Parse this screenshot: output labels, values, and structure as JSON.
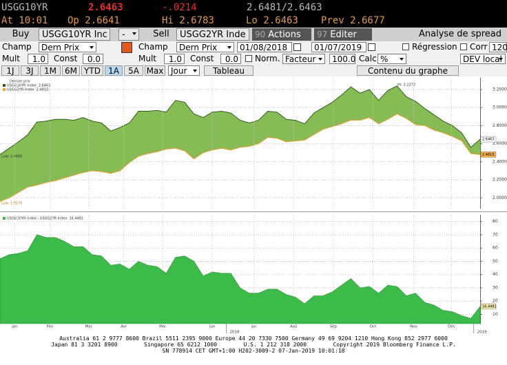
{
  "header": {
    "ticker": "USGG10YR",
    "last": "2.6463",
    "change": "-.0214",
    "bid_ask": "2.6481/2.6463",
    "time": "At 10:01",
    "open": "Op 2.6641",
    "high": "Hi 2.6783",
    "low": "Lo 2.6463",
    "prev": "Prev 2.6677"
  },
  "toolbar": {
    "buy": "Buy",
    "security1": "USGG10YR Inc",
    "operator": "-",
    "sell": "Sell",
    "security2": "USGG2YR Inde",
    "actions_num": "90",
    "actions": "Actions",
    "edit_num": "97",
    "edit": "Editer",
    "title": "Analyse de spread"
  },
  "controls": {
    "field1_label": "Champ",
    "field1": "Dern Prix",
    "field2_label": "Champ",
    "field2": "Dern Prix",
    "start_date": "01/08/2018",
    "end_date": "01/07/2019",
    "regression": "Régression",
    "corr": "Corr",
    "corr_value": "120",
    "mult1_label": "Mult",
    "mult1": "1.0",
    "const1_label": "Const",
    "const1": "0.0",
    "mult2_label": "Mult",
    "mult2": "1.0",
    "const2_label": "Const",
    "const2": "0.0",
    "norm": "Norm.",
    "factor": "Facteur",
    "factor_value": "100.0",
    "calc": "Calc",
    "calc_value": "%",
    "currency": "DEV local",
    "periods": [
      "1J",
      "3J",
      "1M",
      "6M",
      "YTD",
      "1A",
      "5A",
      "Max"
    ],
    "frequency": "Jour",
    "table": "Tableau",
    "contents": "Contenu du graphe"
  },
  "chart_data": [
    {
      "type": "line",
      "legend_title": "Dernier prix",
      "fill_color": "#79b443",
      "grid": true,
      "x": [
        0,
        1,
        2,
        3,
        4,
        5,
        6,
        7,
        8,
        9,
        10,
        11,
        12,
        13,
        14,
        15,
        16,
        17,
        18,
        19,
        20,
        21,
        22,
        23,
        24,
        25,
        26,
        27,
        28,
        29,
        30,
        31,
        32,
        33,
        34,
        35,
        36,
        37,
        38,
        39,
        40,
        41,
        42,
        43,
        44,
        45,
        46,
        47,
        48,
        49,
        50,
        51,
        52
      ],
      "xlim": [
        0,
        52
      ],
      "ylim": [
        1.88,
        3.33
      ],
      "yticks": [
        {
          "value": 3.2,
          "label": "3.2000"
        },
        {
          "value": 3.0,
          "label": "3.0000"
        },
        {
          "value": 2.8,
          "label": "2.8000"
        },
        {
          "value": 2.6,
          "label": "2.6000"
        },
        {
          "value": 2.4,
          "label": "2.4000"
        },
        {
          "value": 2.2,
          "label": "2.2000"
        },
        {
          "value": 2.0,
          "label": "2.0000"
        }
      ],
      "series": [
        {
          "name": "USGG10YR Index",
          "last_label": "2.6463",
          "color": "#2f5f18",
          "values": [
            2.48,
            2.55,
            2.62,
            2.7,
            2.84,
            2.85,
            2.87,
            2.87,
            2.86,
            2.89,
            2.85,
            2.83,
            2.74,
            2.78,
            2.83,
            2.96,
            2.96,
            2.97,
            2.95,
            3.08,
            3.06,
            2.93,
            2.89,
            2.95,
            2.96,
            2.94,
            2.86,
            2.83,
            2.86,
            2.96,
            2.95,
            2.87,
            2.86,
            2.82,
            2.94,
            3.0,
            3.06,
            3.14,
            3.23,
            3.16,
            3.2,
            3.08,
            3.19,
            3.24,
            3.12,
            3.07,
            2.99,
            2.92,
            2.85,
            2.8,
            2.72,
            2.56,
            2.65
          ]
        },
        {
          "name": "USGG2YR Index",
          "last_label": "2.4815",
          "color": "#f0a030",
          "values": [
            1.96,
            2.0,
            2.06,
            2.12,
            2.14,
            2.17,
            2.19,
            2.22,
            2.25,
            2.28,
            2.3,
            2.29,
            2.27,
            2.3,
            2.39,
            2.46,
            2.49,
            2.51,
            2.54,
            2.55,
            2.52,
            2.43,
            2.5,
            2.53,
            2.55,
            2.53,
            2.56,
            2.57,
            2.6,
            2.67,
            2.66,
            2.62,
            2.63,
            2.64,
            2.7,
            2.76,
            2.79,
            2.82,
            2.86,
            2.86,
            2.89,
            2.82,
            2.87,
            2.93,
            2.88,
            2.81,
            2.8,
            2.75,
            2.72,
            2.68,
            2.63,
            2.49,
            2.48
          ]
        }
      ],
      "annotations": [
        "Hi: 3.2373",
        "Low: 2.4880",
        "Low: 1.9579"
      ]
    },
    {
      "type": "area",
      "grid": true,
      "x": [
        0,
        1,
        2,
        3,
        4,
        5,
        6,
        7,
        8,
        9,
        10,
        11,
        12,
        13,
        14,
        15,
        16,
        17,
        18,
        19,
        20,
        21,
        22,
        23,
        24,
        25,
        26,
        27,
        28,
        29,
        30,
        31,
        32,
        33,
        34,
        35,
        36,
        37,
        38,
        39,
        40,
        41,
        42,
        43,
        44,
        45,
        46,
        47,
        48,
        49,
        50,
        51,
        52
      ],
      "xlim": [
        0,
        52
      ],
      "ylim": [
        3,
        85
      ],
      "yticks": [
        80,
        70,
        60,
        50,
        40,
        30,
        20,
        10
      ],
      "xticks": [
        {
          "value": 1.6,
          "label": "Jan"
        },
        {
          "value": 5.4,
          "label": "Fév"
        },
        {
          "value": 9.6,
          "label": "Mar"
        },
        {
          "value": 13.4,
          "label": "Avr"
        },
        {
          "value": 17.6,
          "label": "Mai"
        },
        {
          "value": 23,
          "label": "Jun"
        },
        {
          "value": 27.5,
          "label": "Jul"
        },
        {
          "value": 31.8,
          "label": "Aoû"
        },
        {
          "value": 36.1,
          "label": "Sep"
        },
        {
          "value": 40.4,
          "label": "Oct"
        },
        {
          "value": 44.8,
          "label": "Nov"
        },
        {
          "value": 48.9,
          "label": "Déc"
        }
      ],
      "year_ticks": [
        {
          "value": 25.4,
          "label": "2018"
        },
        {
          "value": 52.2,
          "label": "2019"
        }
      ],
      "series": [
        {
          "name": "USGG10YR Index - USGG2YR Index",
          "last_label": "16.4481",
          "color": "#3dbb4a",
          "values": [
            52,
            55,
            56,
            58,
            70,
            68,
            68,
            65,
            61,
            61,
            55,
            54,
            47,
            48,
            44,
            50,
            47,
            46,
            41,
            53,
            54,
            50,
            39,
            42,
            41,
            41,
            30,
            26,
            26,
            29,
            29,
            25,
            23,
            18,
            24,
            24,
            27,
            32,
            37,
            30,
            31,
            26,
            32,
            31,
            24,
            26,
            19,
            17,
            13,
            12,
            9,
            7,
            16
          ]
        }
      ]
    }
  ],
  "footer": {
    "line1": "Australia 61 2 9777 8600 Brazil 5511 2395 9000 Europe 44 20 7330 7500 Germany 49 69 9204 1210 Hong Kong 852 2977 6000",
    "line2": "Japan 81 3 3201 8900        Singapore 65 6212 1000        U.S. 1 212 318 2000        Copyright 2019 Bloomberg Finance L.P.",
    "line3": "SN 778914 CET  GMT+1:00 H202-3009-2 07-Jan-2019 10:01:18"
  }
}
